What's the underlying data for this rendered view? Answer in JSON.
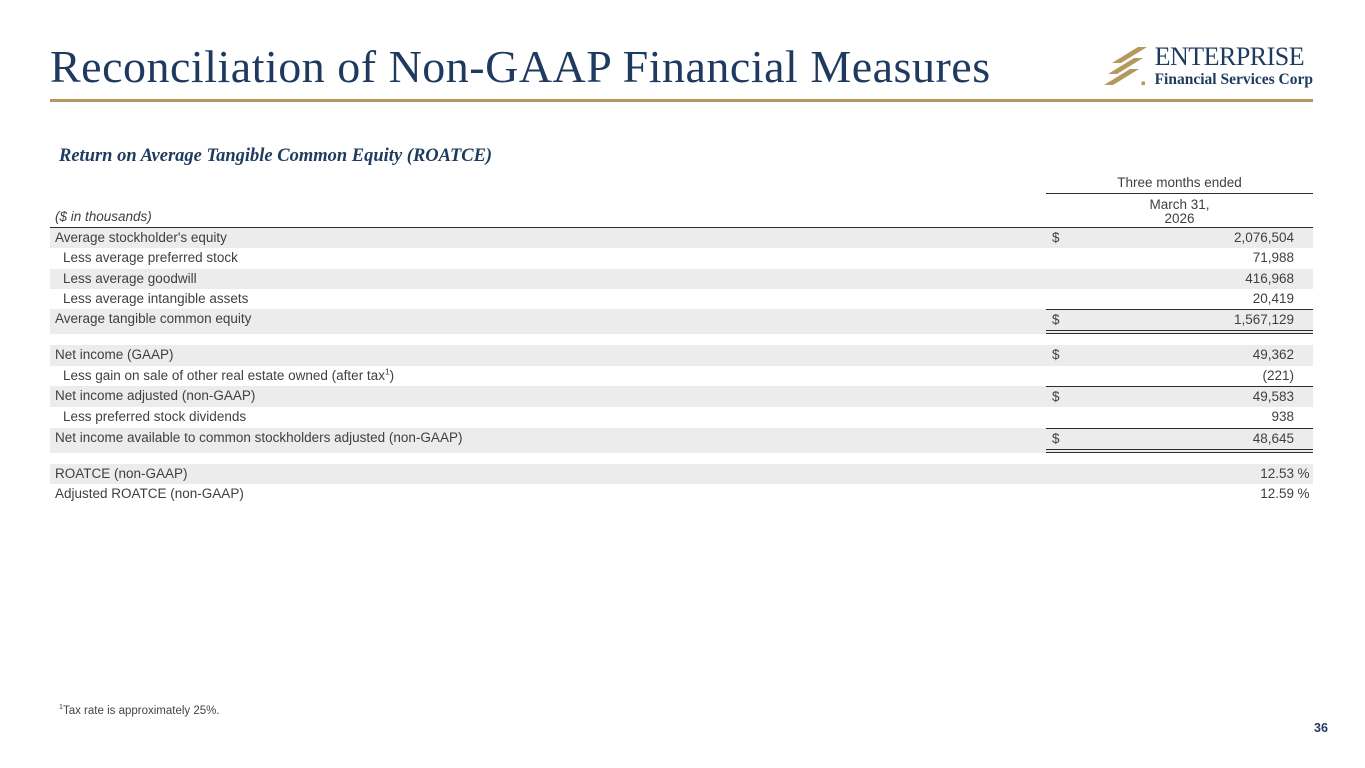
{
  "slide": {
    "title": "Reconciliation of Non-GAAP Financial Measures",
    "page_number": "36"
  },
  "logo": {
    "icon": "diagonal-stripes-icon",
    "name": "ENTERPRISE",
    "subtitle": "Financial Services Corp"
  },
  "section": {
    "title": "Return on Average Tangible Common Equity (ROATCE)"
  },
  "table": {
    "units_label": "($ in thousands)",
    "col_header": "Three months ended",
    "col_subheader": [
      "March 31,",
      "2026"
    ],
    "rows": [
      {
        "label": "Average stockholder's equity",
        "indent": false,
        "dollar": "$",
        "value": "2,076,504",
        "pct": "",
        "shaded": true,
        "border_top": false,
        "border_bottom": "none",
        "gap_before": false
      },
      {
        "label": "Less average preferred stock",
        "indent": true,
        "dollar": "",
        "value": "71,988",
        "pct": "",
        "shaded": false,
        "border_top": false,
        "border_bottom": "none",
        "gap_before": false
      },
      {
        "label": "Less average goodwill",
        "indent": true,
        "dollar": "",
        "value": "416,968",
        "pct": "",
        "shaded": true,
        "border_top": false,
        "border_bottom": "none",
        "gap_before": false
      },
      {
        "label": "Less average intangible assets",
        "indent": true,
        "dollar": "",
        "value": "20,419",
        "pct": "",
        "shaded": false,
        "border_top": false,
        "border_bottom": "none",
        "gap_before": false
      },
      {
        "label": "Average tangible common equity",
        "indent": false,
        "dollar": "$",
        "value": "1,567,129",
        "pct": "",
        "shaded": true,
        "border_top": true,
        "border_bottom": "double",
        "gap_before": false
      },
      {
        "label": "Net income (GAAP)",
        "indent": false,
        "dollar": "$",
        "value": "49,362",
        "pct": "",
        "shaded": true,
        "border_top": false,
        "border_bottom": "none",
        "gap_before": true
      },
      {
        "label": "Less gain on sale of other real estate owned (after tax",
        "label_sup": "1",
        "label_after": ")",
        "indent": true,
        "dollar": "",
        "value": "(221)",
        "pct": "",
        "shaded": false,
        "border_top": false,
        "border_bottom": "none",
        "gap_before": false
      },
      {
        "label": "Net income adjusted (non-GAAP)",
        "indent": false,
        "dollar": "$",
        "value": "49,583",
        "pct": "",
        "shaded": true,
        "border_top": true,
        "border_bottom": "none",
        "gap_before": false
      },
      {
        "label": "Less preferred stock dividends",
        "indent": true,
        "dollar": "",
        "value": "938",
        "pct": "",
        "shaded": false,
        "border_top": false,
        "border_bottom": "none",
        "gap_before": false
      },
      {
        "label": "Net income available to common stockholders adjusted (non-GAAP)",
        "indent": false,
        "dollar": "$",
        "value": "48,645",
        "pct": "",
        "shaded": true,
        "border_top": true,
        "border_bottom": "double",
        "gap_before": false
      },
      {
        "label": "ROATCE (non-GAAP)",
        "indent": false,
        "dollar": "",
        "value": "12.53",
        "pct": "%",
        "shaded": true,
        "border_top": false,
        "border_bottom": "none",
        "gap_before": true
      },
      {
        "label": "Adjusted ROATCE (non-GAAP)",
        "indent": false,
        "dollar": "",
        "value": "12.59",
        "pct": "%",
        "shaded": false,
        "border_top": false,
        "border_bottom": "none",
        "gap_before": false
      }
    ]
  },
  "footnote": {
    "sup": "1",
    "text": "Tax rate is approximately 25%."
  },
  "colors": {
    "navy": "#1e3a5f",
    "gold": "#b3995d",
    "row_shade": "#ececec",
    "table_text": "#3f3f3f",
    "line": "#2d2d2d"
  }
}
